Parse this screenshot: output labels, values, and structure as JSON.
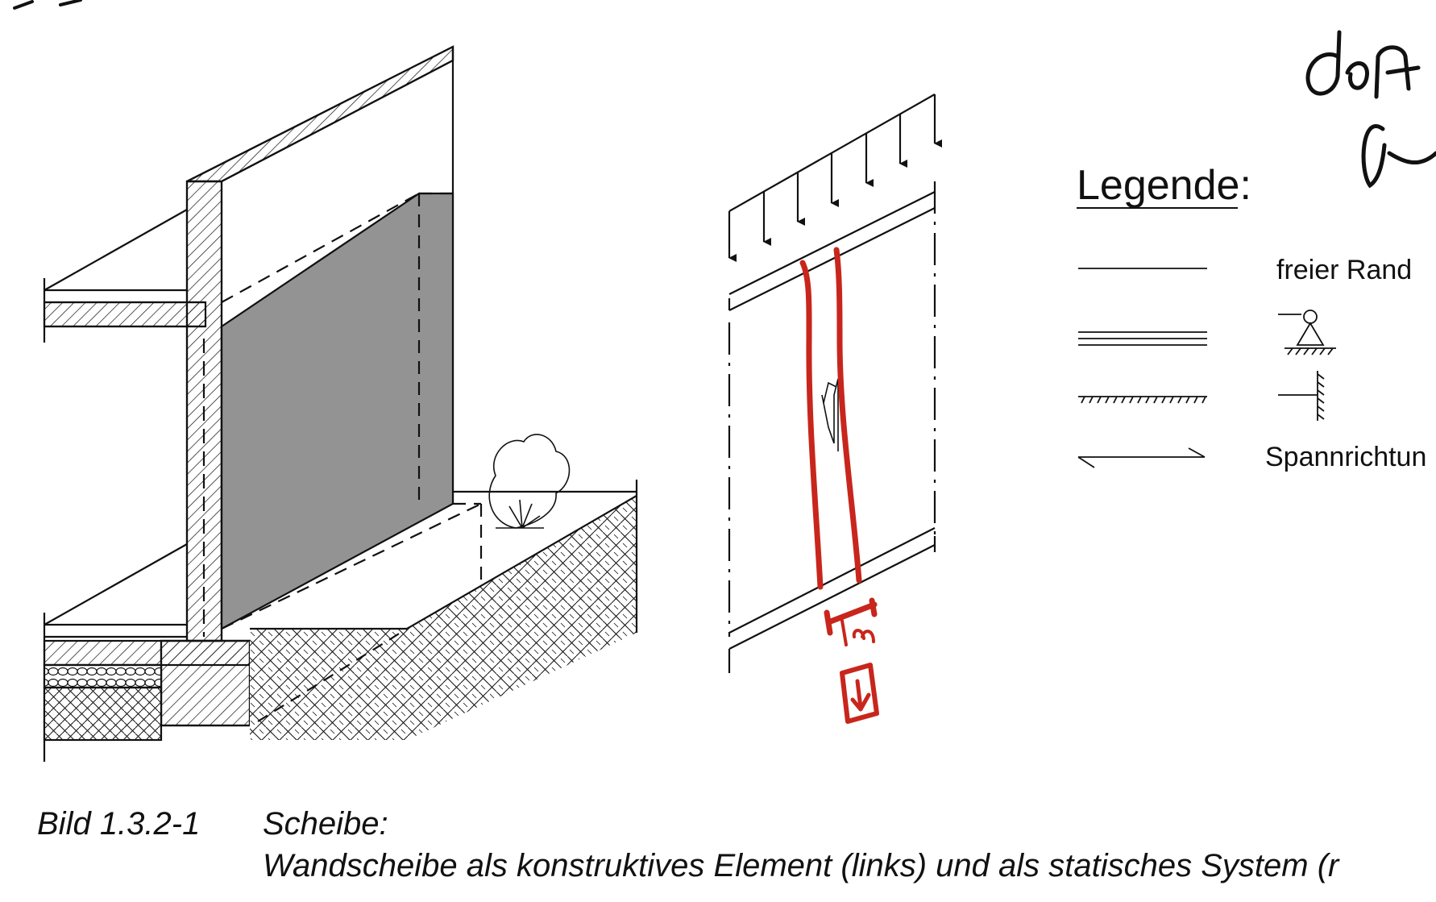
{
  "legend": {
    "title": "Legende:",
    "items": [
      {
        "symbol": "free-edge-line",
        "label": "freier Rand"
      },
      {
        "symbol": "hinged-support-icon",
        "label": ""
      },
      {
        "symbol": "fixed-support-icon",
        "label": ""
      },
      {
        "symbol": "span-direction-arrow",
        "label": "Spannrichtun"
      }
    ]
  },
  "caption": {
    "number": "Bild 1.3.2-1",
    "title": "Scheibe:",
    "text": "Wandscheibe als konstruktives Element (links) und als statisches System (r"
  },
  "annotation": {
    "strip_width": "1m"
  },
  "colors": {
    "ink": "#111111",
    "wall_fill": "#939393",
    "annotation_red": "#c8261c"
  }
}
